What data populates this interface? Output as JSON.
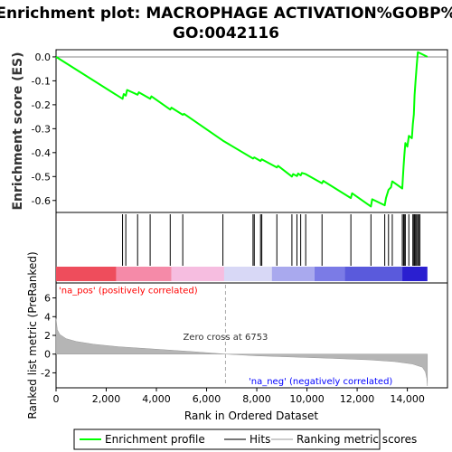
{
  "chart_data": {
    "type": "line",
    "title_line1": "Enrichment plot: MACROPHAGE ACTIVATION%GOBP%",
    "title_line2": "GO:0042116",
    "es_panel": {
      "ylabel": "Enrichment score (ES)",
      "ylim": [
        -0.65,
        0.03
      ],
      "yticks": [
        0.0,
        -0.1,
        -0.2,
        -0.3,
        -0.4,
        -0.5,
        -0.6
      ],
      "ytick_labels": [
        "0.0",
        "-0.1",
        "-0.2",
        "-0.3",
        "-0.4",
        "-0.5",
        "-0.6"
      ],
      "line_color": "#00ff00",
      "series": [
        {
          "x": 0,
          "y": 0.0
        },
        {
          "x": 2650,
          "y": -0.175
        },
        {
          "x": 2700,
          "y": -0.155
        },
        {
          "x": 2780,
          "y": -0.162
        },
        {
          "x": 2830,
          "y": -0.138
        },
        {
          "x": 3250,
          "y": -0.158
        },
        {
          "x": 3300,
          "y": -0.148
        },
        {
          "x": 3750,
          "y": -0.175
        },
        {
          "x": 3800,
          "y": -0.165
        },
        {
          "x": 4550,
          "y": -0.22
        },
        {
          "x": 4600,
          "y": -0.212
        },
        {
          "x": 5050,
          "y": -0.242
        },
        {
          "x": 5100,
          "y": -0.238
        },
        {
          "x": 6650,
          "y": -0.35
        },
        {
          "x": 7850,
          "y": -0.425
        },
        {
          "x": 7900,
          "y": -0.42
        },
        {
          "x": 8150,
          "y": -0.435
        },
        {
          "x": 8200,
          "y": -0.428
        },
        {
          "x": 8800,
          "y": -0.462
        },
        {
          "x": 8850,
          "y": -0.455
        },
        {
          "x": 9400,
          "y": -0.5
        },
        {
          "x": 9450,
          "y": -0.49
        },
        {
          "x": 9600,
          "y": -0.498
        },
        {
          "x": 9650,
          "y": -0.487
        },
        {
          "x": 9750,
          "y": -0.495
        },
        {
          "x": 9800,
          "y": -0.485
        },
        {
          "x": 9950,
          "y": -0.49
        },
        {
          "x": 10600,
          "y": -0.528
        },
        {
          "x": 10650,
          "y": -0.518
        },
        {
          "x": 11750,
          "y": -0.59
        },
        {
          "x": 11800,
          "y": -0.57
        },
        {
          "x": 12550,
          "y": -0.625
        },
        {
          "x": 12600,
          "y": -0.595
        },
        {
          "x": 13100,
          "y": -0.62
        },
        {
          "x": 13150,
          "y": -0.59
        },
        {
          "x": 13250,
          "y": -0.555
        },
        {
          "x": 13350,
          "y": -0.545
        },
        {
          "x": 13400,
          "y": -0.52
        },
        {
          "x": 13800,
          "y": -0.55
        },
        {
          "x": 13820,
          "y": -0.51
        },
        {
          "x": 13850,
          "y": -0.46
        },
        {
          "x": 13880,
          "y": -0.41
        },
        {
          "x": 13920,
          "y": -0.36
        },
        {
          "x": 14000,
          "y": -0.375
        },
        {
          "x": 14060,
          "y": -0.33
        },
        {
          "x": 14180,
          "y": -0.34
        },
        {
          "x": 14220,
          "y": -0.28
        },
        {
          "x": 14260,
          "y": -0.24
        },
        {
          "x": 14290,
          "y": -0.16
        },
        {
          "x": 14330,
          "y": -0.1
        },
        {
          "x": 14370,
          "y": -0.04
        },
        {
          "x": 14420,
          "y": 0.02
        },
        {
          "x": 14800,
          "y": 0.0
        }
      ]
    },
    "hits_panel": {
      "hit_positions": [
        2650,
        2780,
        3250,
        3750,
        4550,
        5050,
        6650,
        7850,
        7900,
        8150,
        8200,
        8800,
        9400,
        9600,
        9750,
        9950,
        10600,
        11750,
        12550,
        13100,
        13250,
        13400,
        13800,
        13850,
        13880,
        13920,
        14060,
        14220,
        14260,
        14290,
        14330,
        14370,
        14420,
        14450,
        14500
      ],
      "colorbar_segments": [
        {
          "start": 0,
          "end": 2400,
          "color": "#ee4d5c"
        },
        {
          "start": 2400,
          "end": 4600,
          "color": "#f58aa8"
        },
        {
          "start": 4600,
          "end": 6700,
          "color": "#f6bde0"
        },
        {
          "start": 6700,
          "end": 8600,
          "color": "#d8d8f6"
        },
        {
          "start": 8600,
          "end": 10300,
          "color": "#a9a9ee"
        },
        {
          "start": 10300,
          "end": 11500,
          "color": "#7b7be6"
        },
        {
          "start": 11500,
          "end": 13800,
          "color": "#5a5adc"
        },
        {
          "start": 13800,
          "end": 14800,
          "color": "#2a1fd0"
        }
      ]
    },
    "rank_panel": {
      "ylabel": "Ranked list metric (PreRanked)",
      "ylim": [
        -3.6,
        7.6
      ],
      "yticks": [
        6,
        4,
        2,
        0,
        -2
      ],
      "ytick_labels": [
        "6",
        "4",
        "2",
        "0",
        "-2"
      ],
      "xlabel": "Rank in Ordered Dataset",
      "xlim": [
        0,
        15600
      ],
      "xticks": [
        0,
        2000,
        4000,
        6000,
        8000,
        10000,
        12000,
        14000
      ],
      "xtick_labels": [
        "0",
        "2,000",
        "4,000",
        "6,000",
        "8,000",
        "10,000",
        "12,000",
        "14,000"
      ],
      "curve": [
        {
          "x": 0,
          "y": 3.8
        },
        {
          "x": 50,
          "y": 2.6
        },
        {
          "x": 150,
          "y": 2.1
        },
        {
          "x": 400,
          "y": 1.65
        },
        {
          "x": 800,
          "y": 1.35
        },
        {
          "x": 1500,
          "y": 1.05
        },
        {
          "x": 2500,
          "y": 0.78
        },
        {
          "x": 4000,
          "y": 0.52
        },
        {
          "x": 5500,
          "y": 0.25
        },
        {
          "x": 6753,
          "y": 0.0
        },
        {
          "x": 8000,
          "y": -0.18
        },
        {
          "x": 9500,
          "y": -0.32
        },
        {
          "x": 11000,
          "y": -0.45
        },
        {
          "x": 12500,
          "y": -0.62
        },
        {
          "x": 13500,
          "y": -0.8
        },
        {
          "x": 14200,
          "y": -1.05
        },
        {
          "x": 14600,
          "y": -1.4
        },
        {
          "x": 14720,
          "y": -1.9
        },
        {
          "x": 14780,
          "y": -2.6
        },
        {
          "x": 14800,
          "y": -3.4
        }
      ],
      "zero_cross": 6753,
      "zero_cross_label": "Zero cross at 6753",
      "pos_label": "'na_pos' (positively correlated)",
      "neg_label": "'na_neg' (negatively correlated)",
      "pos_color": "#ff0000",
      "neg_color": "#0000ff",
      "fill_color": "#b5b5b5"
    },
    "legend": {
      "entries": [
        {
          "label": "Enrichment profile",
          "color": "#00ff00"
        },
        {
          "label": "Hits",
          "color": "#777777"
        },
        {
          "label": "Ranking metric scores",
          "color": "#cccccc"
        }
      ]
    }
  }
}
